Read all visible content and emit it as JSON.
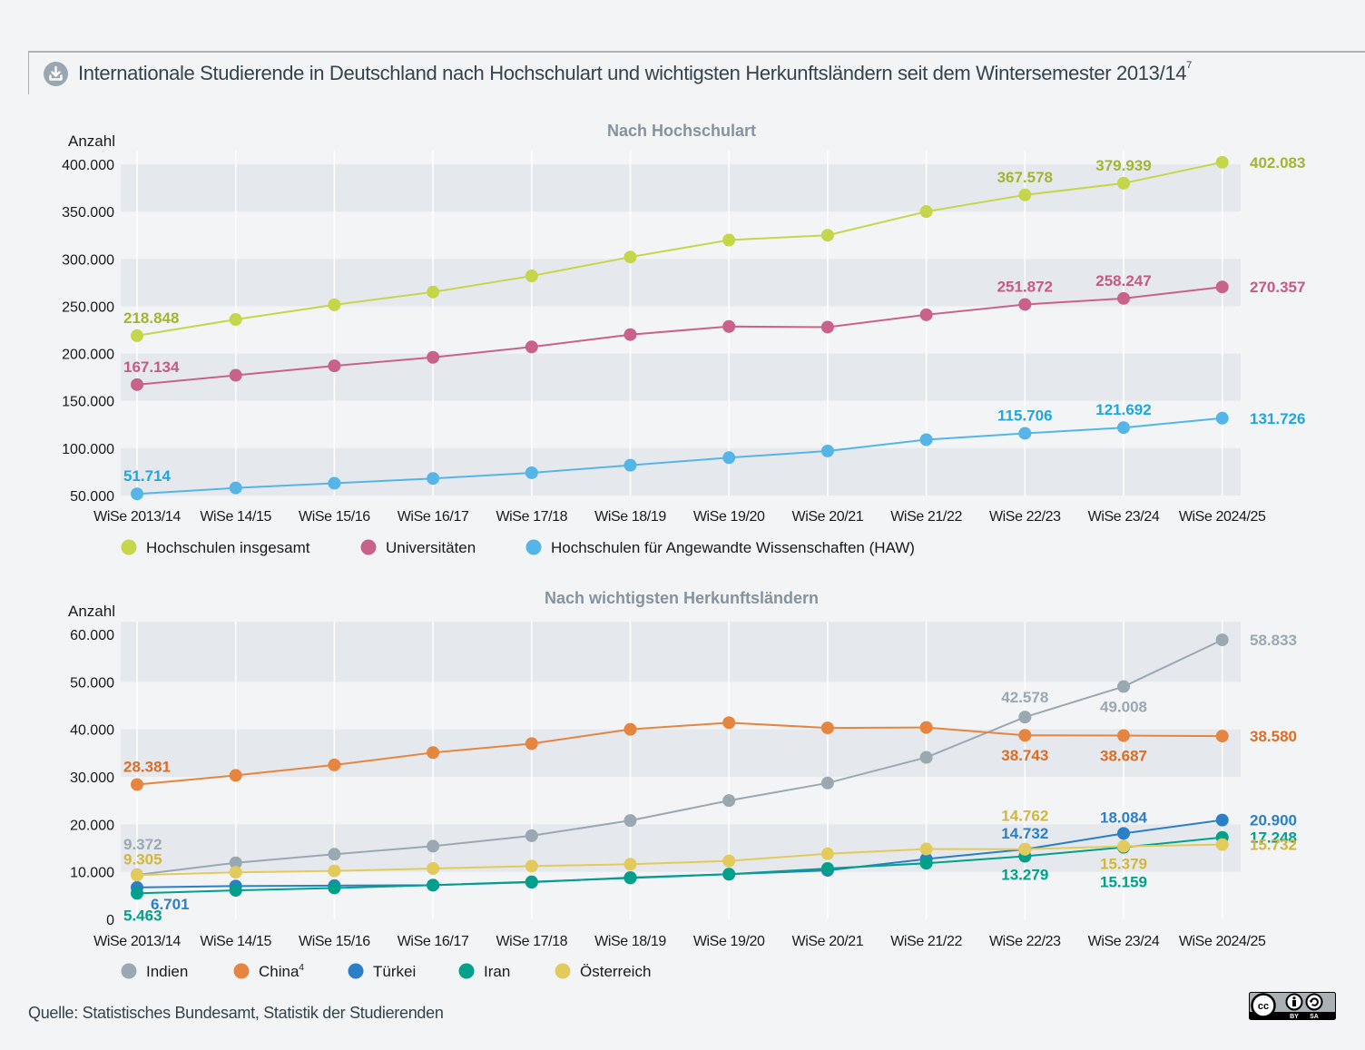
{
  "header": {
    "title": "Internationale Studierende in Deutschland nach Hochschulart und wichtigsten Herkunftsländern seit dem Wintersemester 2013/14",
    "title_footnote": "7",
    "download_icon": "download-icon"
  },
  "source": "Quelle: Statistisches Bundesamt, Statistik der Studierenden",
  "license": {
    "icon": "cc-by-sa-icon",
    "labels": [
      "BY",
      "SA"
    ],
    "cc_text": "cc"
  },
  "colors": {
    "insgesamt": "#c5d64a",
    "insgesamt_label": "#a3b530",
    "uni": "#c8628a",
    "uni_label": "#c55a85",
    "haw": "#55b5e6",
    "haw_label": "#1fa6df",
    "indien": "#9aa8b2",
    "china": "#e5853f",
    "china_label": "#dd6d22",
    "tuerkei": "#2b7fc6",
    "iran": "#00a08a",
    "oesterreich": "#e2cb5c",
    "oesterreich_label": "#d2b73b",
    "band": "#e5e9ed",
    "background": "#f2f4f6"
  },
  "chart_data": [
    {
      "type": "line",
      "title": "Nach Hochschulart",
      "xlabel": "",
      "ylabel": "Anzahl",
      "ylim": [
        50000,
        400000
      ],
      "yticks": [
        50000,
        100000,
        150000,
        200000,
        250000,
        300000,
        350000,
        400000
      ],
      "ytick_labels": [
        "50.000",
        "100.000",
        "150.000",
        "200.000",
        "250.000",
        "300.000",
        "350.000",
        "400.000"
      ],
      "grid": "alternating horizontal bands, vertical white lines",
      "legend_position": "bottom",
      "categories": [
        "WiSe 2013/14",
        "WiSe 14/15",
        "WiSe 15/16",
        "WiSe 16/17",
        "WiSe 17/18",
        "WiSe 18/19",
        "WiSe 19/20",
        "WiSe 20/21",
        "WiSe 21/22",
        "WiSe 22/23",
        "WiSe 23/24",
        "WiSe 2024/25"
      ],
      "series": [
        {
          "key": "insgesamt",
          "name": "Hochschulen insgesamt",
          "values": [
            218848,
            236000,
            251500,
            265000,
            282000,
            302000,
            319900,
            325000,
            350000,
            367578,
            379939,
            402083
          ],
          "labels": [
            {
              "i": 0,
              "text": "218.848",
              "pos": "above"
            },
            {
              "i": 9,
              "text": "367.578",
              "pos": "above"
            },
            {
              "i": 10,
              "text": "379.939",
              "pos": "above"
            },
            {
              "i": 11,
              "text": "402.083",
              "pos": "right"
            }
          ]
        },
        {
          "key": "uni",
          "name": "Universitäten",
          "values": [
            167134,
            177000,
            187000,
            196000,
            207000,
            220000,
            228600,
            227900,
            241000,
            251872,
            258247,
            270357
          ],
          "labels": [
            {
              "i": 0,
              "text": "167.134",
              "pos": "above"
            },
            {
              "i": 9,
              "text": "251.872",
              "pos": "above"
            },
            {
              "i": 10,
              "text": "258.247",
              "pos": "above"
            },
            {
              "i": 11,
              "text": "270.357",
              "pos": "right"
            }
          ]
        },
        {
          "key": "haw",
          "name": "Hochschulen für Angewandte Wissenschaften (HAW)",
          "values": [
            51714,
            58000,
            63000,
            68000,
            74000,
            82000,
            90000,
            97000,
            109000,
            115706,
            121692,
            131726
          ],
          "labels": [
            {
              "i": 0,
              "text": "51.714",
              "pos": "above"
            },
            {
              "i": 9,
              "text": "115.706",
              "pos": "above"
            },
            {
              "i": 10,
              "text": "121.692",
              "pos": "above"
            },
            {
              "i": 11,
              "text": "131.726",
              "pos": "right"
            }
          ]
        }
      ]
    },
    {
      "type": "line",
      "title": "Nach wichtigsten Herkunftsländern",
      "xlabel": "",
      "ylabel": "Anzahl",
      "ylim": [
        0,
        60000
      ],
      "yticks": [
        0,
        10000,
        20000,
        30000,
        40000,
        50000,
        60000
      ],
      "ytick_labels": [
        "0",
        "10.000",
        "20.000",
        "30.000",
        "40.000",
        "50.000",
        "60.000"
      ],
      "grid": "alternating horizontal bands, vertical white lines",
      "legend_position": "bottom",
      "categories": [
        "WiSe 2013/14",
        "WiSe 14/15",
        "WiSe 15/16",
        "WiSe 16/17",
        "WiSe 17/18",
        "WiSe 18/19",
        "WiSe 19/20",
        "WiSe 20/21",
        "WiSe 21/22",
        "WiSe 22/23",
        "WiSe 23/24",
        "WiSe 2024/25"
      ],
      "series": [
        {
          "key": "indien",
          "name": "Indien",
          "legend_sup": "",
          "values": [
            9372,
            11900,
            13700,
            15400,
            17600,
            20800,
            25000,
            28700,
            34100,
            42578,
            49008,
            58833
          ],
          "labels": [
            {
              "i": 0,
              "text": "9.372",
              "dy": -28
            },
            {
              "i": 9,
              "text": "42.578",
              "dy": -16
            },
            {
              "i": 10,
              "text": "49.008",
              "dy": 28
            },
            {
              "i": 11,
              "text": "58.833",
              "pos": "right"
            }
          ]
        },
        {
          "key": "china",
          "name": "China",
          "legend_sup": "4",
          "values": [
            28381,
            30300,
            32500,
            35100,
            37000,
            40000,
            41400,
            40300,
            40400,
            38743,
            38687,
            38580
          ],
          "labels": [
            {
              "i": 0,
              "text": "28.381",
              "dy": -14
            },
            {
              "i": 9,
              "text": "38.743",
              "dy": 28
            },
            {
              "i": 10,
              "text": "38.687",
              "dy": 28
            },
            {
              "i": 11,
              "text": "38.580",
              "pos": "right"
            }
          ]
        },
        {
          "key": "tuerkei",
          "name": "Türkei",
          "legend_sup": "",
          "values": [
            6701,
            7000,
            7100,
            7200,
            7800,
            8800,
            9500,
            10300,
            12700,
            14732,
            18084,
            20900
          ],
          "labels": [
            {
              "i": 0,
              "text": "6.701",
              "dy": 24,
              "dx": 30
            },
            {
              "i": 9,
              "text": "14.732",
              "dy": -12
            },
            {
              "i": 10,
              "text": "18.084",
              "dy": -12
            },
            {
              "i": 11,
              "text": "20.900",
              "pos": "right"
            }
          ]
        },
        {
          "key": "iran",
          "name": "Iran",
          "legend_sup": "",
          "values": [
            5463,
            6100,
            6600,
            7200,
            7900,
            8700,
            9500,
            10700,
            11800,
            13279,
            15159,
            17248
          ],
          "labels": [
            {
              "i": 0,
              "text": "5.463",
              "dy": 30
            },
            {
              "i": 9,
              "text": "13.279",
              "dy": 26
            },
            {
              "i": 10,
              "text": "15.159",
              "dy": 44
            },
            {
              "i": 11,
              "text": "17.248",
              "pos": "right"
            }
          ]
        },
        {
          "key": "oesterreich",
          "name": "Österreich",
          "legend_sup": "",
          "values": [
            9305,
            9900,
            10200,
            10700,
            11200,
            11600,
            12300,
            13800,
            14800,
            14762,
            15379,
            15732
          ],
          "labels": [
            {
              "i": 0,
              "text": "9.305",
              "dy": -12
            },
            {
              "i": 9,
              "text": "14.762",
              "dy": -31
            },
            {
              "i": 10,
              "text": "15.379",
              "dy": 25
            },
            {
              "i": 11,
              "text": "15.732",
              "pos": "right"
            }
          ]
        }
      ]
    }
  ]
}
